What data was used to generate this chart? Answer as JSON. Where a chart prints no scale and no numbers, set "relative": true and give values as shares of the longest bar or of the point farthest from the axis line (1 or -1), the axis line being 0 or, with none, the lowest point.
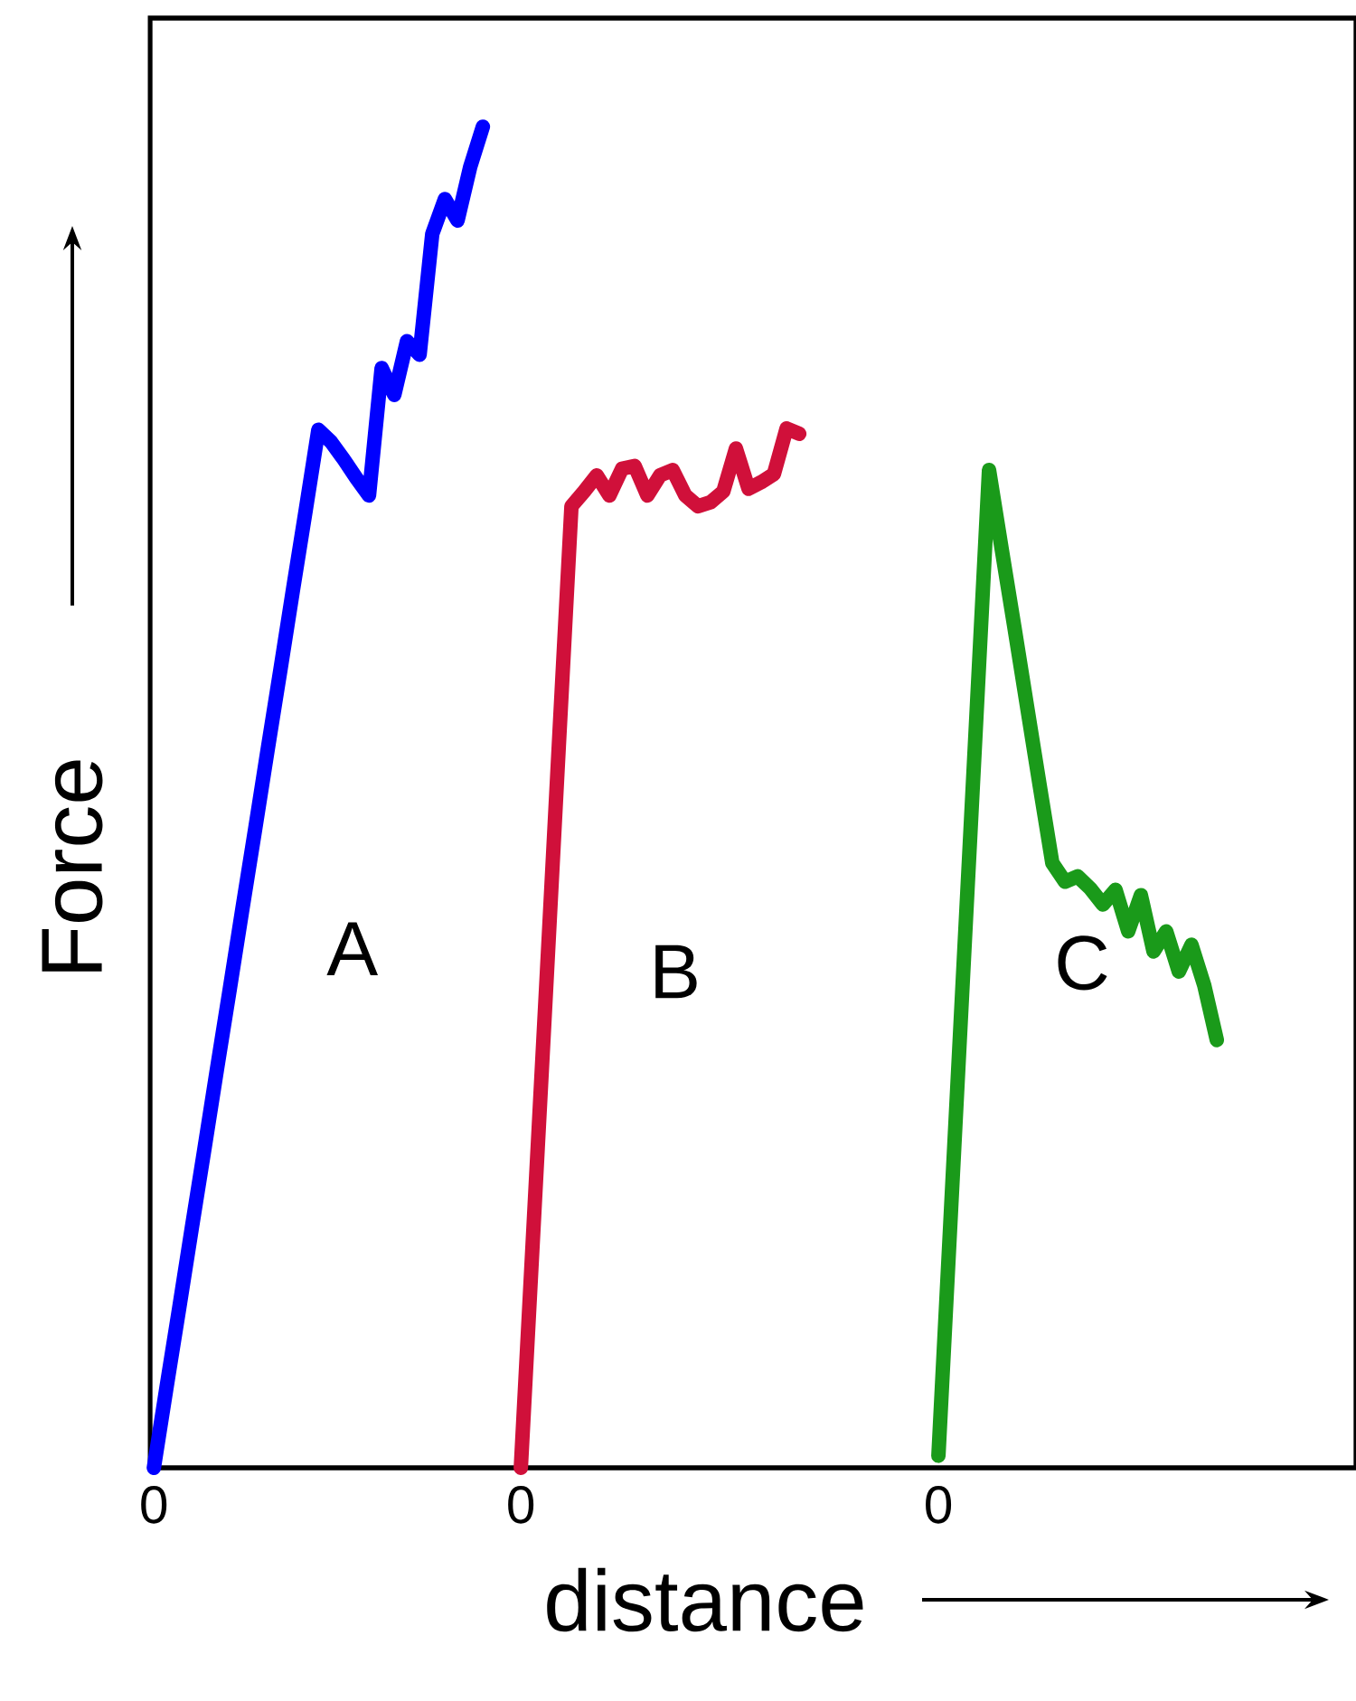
{
  "chart_data": {
    "type": "line",
    "relative": true,
    "xlabel": "distance",
    "ylabel": "Force",
    "categories": [
      "0",
      null,
      null,
      null,
      null,
      null,
      null,
      null,
      null,
      null,
      null,
      null,
      null,
      null,
      null,
      null,
      null,
      null,
      null,
      null,
      null,
      null,
      null,
      null,
      null,
      null,
      null,
      null,
      null,
      "0",
      null,
      null,
      null,
      null,
      null,
      null,
      null,
      null,
      null,
      null,
      null,
      null,
      null,
      null,
      null,
      null,
      null,
      null,
      null,
      null,
      null,
      null,
      null,
      null,
      null,
      null,
      null,
      null,
      null,
      null,
      null,
      null,
      "0",
      null,
      null,
      null,
      null,
      null,
      null,
      null,
      null,
      null,
      null,
      null,
      null,
      null,
      null,
      null,
      null,
      null,
      null,
      null,
      null,
      null,
      null,
      null,
      null,
      null,
      null,
      null,
      null,
      null,
      null,
      null,
      null
    ],
    "series": [
      {
        "name": "A",
        "color": "#0000ff",
        "values": [
          0,
          0.06,
          0.119,
          0.179,
          0.238,
          0.298,
          0.357,
          0.417,
          0.476,
          0.536,
          0.595,
          0.655,
          0.714,
          0.774,
          0.765,
          0.752,
          0.738,
          0.725,
          0.82,
          0.8,
          0.84,
          0.83,
          0.92,
          0.946,
          0.93,
          0.97,
          1.0,
          null,
          null,
          null,
          null,
          null,
          null,
          null,
          null,
          null,
          null,
          null,
          null,
          null,
          null,
          null,
          null,
          null,
          null,
          null,
          null,
          null,
          null,
          null,
          null,
          null,
          null,
          null,
          null,
          null,
          null,
          null,
          null,
          null,
          null,
          null,
          null,
          null,
          null,
          null,
          null,
          null,
          null,
          null,
          null,
          null,
          null,
          null,
          null,
          null,
          null,
          null,
          null,
          null,
          null,
          null,
          null,
          null,
          null,
          null,
          null,
          null,
          null,
          null,
          null,
          null,
          null,
          null,
          null
        ]
      },
      {
        "name": "B",
        "color": "#d0103a",
        "values": [
          null,
          null,
          null,
          null,
          null,
          null,
          null,
          null,
          null,
          null,
          null,
          null,
          null,
          null,
          null,
          null,
          null,
          null,
          null,
          null,
          null,
          null,
          null,
          null,
          null,
          null,
          null,
          null,
          null,
          0,
          0.179,
          0.358,
          0.538,
          0.717,
          0.728,
          0.74,
          0.725,
          0.745,
          0.747,
          0.725,
          0.74,
          0.744,
          0.725,
          0.717,
          0.72,
          0.728,
          0.76,
          0.73,
          0.735,
          0.741,
          0.775,
          0.771,
          null,
          null,
          null,
          null,
          null,
          null,
          null,
          null,
          null,
          null,
          null,
          null,
          null,
          null,
          null,
          null,
          null,
          null,
          null,
          null,
          null,
          null,
          null,
          null,
          null,
          null,
          null,
          null,
          null,
          null,
          null,
          null,
          null,
          null,
          null,
          null,
          null,
          null,
          null,
          null,
          null,
          null,
          null
        ]
      },
      {
        "name": "C",
        "color": "#1a9a1a",
        "values": [
          null,
          null,
          null,
          null,
          null,
          null,
          null,
          null,
          null,
          null,
          null,
          null,
          null,
          null,
          null,
          null,
          null,
          null,
          null,
          null,
          null,
          null,
          null,
          null,
          null,
          null,
          null,
          null,
          null,
          null,
          null,
          null,
          null,
          null,
          null,
          null,
          null,
          null,
          null,
          null,
          null,
          null,
          null,
          null,
          null,
          null,
          null,
          null,
          null,
          null,
          null,
          null,
          null,
          null,
          null,
          null,
          null,
          null,
          null,
          null,
          null,
          null,
          0.009,
          0.193,
          0.377,
          0.56,
          0.744,
          0.685,
          0.627,
          0.568,
          0.509,
          0.451,
          0.437,
          0.441,
          0.432,
          0.42,
          0.431,
          0.4,
          0.427,
          0.385,
          0.4,
          0.37,
          0.39,
          0.36,
          0.319,
          null,
          null,
          null,
          null,
          null,
          null,
          null,
          null,
          null,
          null
        ]
      }
    ]
  }
}
